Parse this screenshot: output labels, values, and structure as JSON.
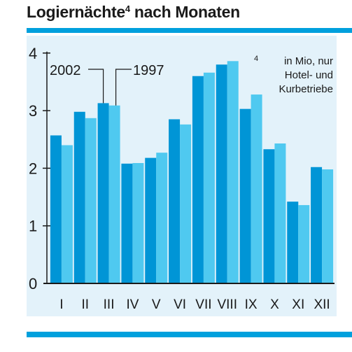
{
  "title": "Logiernächte",
  "title_footnote_mark": "4",
  "title_suffix": " nach Monaten",
  "colors": {
    "series_2002": "#0095d6",
    "series_1997": "#4fc9f0",
    "panel": "#e3f2fa",
    "rule": "#00a0dd"
  },
  "footnote": {
    "mark": "4",
    "lines": [
      "in Mio, nur",
      "Hotel- und",
      "Kurbetriebe"
    ]
  },
  "chart_data": {
    "type": "bar",
    "categories": [
      "I",
      "II",
      "III",
      "IV",
      "V",
      "VI",
      "VII",
      "VIII",
      "IX",
      "X",
      "XI",
      "XII"
    ],
    "series": [
      {
        "name": "2002",
        "values": [
          2.57,
          2.98,
          3.13,
          2.08,
          2.18,
          2.85,
          3.6,
          3.8,
          3.03,
          2.33,
          1.42,
          2.02
        ]
      },
      {
        "name": "1997",
        "values": [
          2.4,
          2.87,
          3.09,
          2.09,
          2.27,
          2.76,
          3.66,
          3.86,
          3.28,
          2.43,
          1.36,
          1.98
        ]
      }
    ],
    "yticks": [
      0,
      1,
      2,
      3,
      4
    ],
    "ylim": [
      0,
      4.35
    ],
    "legend_placement": "top-left",
    "grid": false,
    "title": "",
    "xlabel": "",
    "ylabel": ""
  }
}
